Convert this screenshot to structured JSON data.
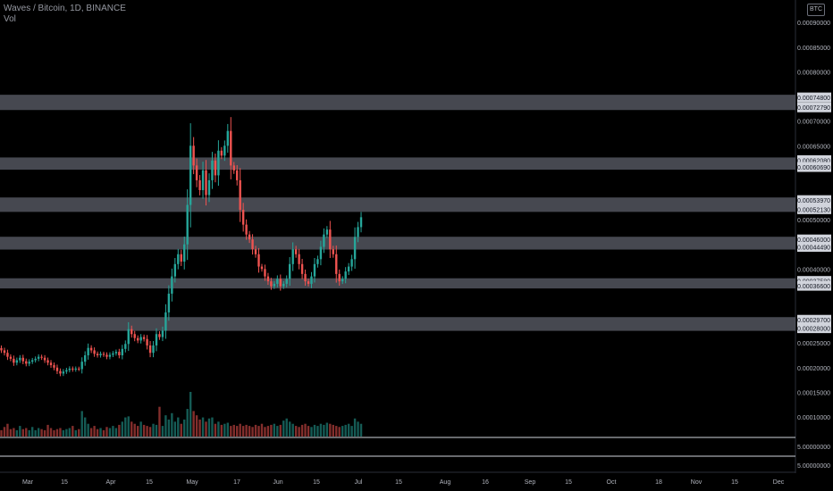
{
  "header": {
    "symbol_line": "Waves / Bitcoin, 1D, BINANCE",
    "volume_label": "Vol",
    "currency_badge": "BTC"
  },
  "colors": {
    "background": "#000000",
    "up": "#26a69a",
    "down": "#ef5350",
    "zone": "#5d606b",
    "axis_text": "#b2b5be",
    "label_box": "#d1d4dc"
  },
  "chart_data": {
    "type": "candlestick",
    "title": "Waves / Bitcoin, 1D, BINANCE",
    "y_axis_ticks": [
      "0.00090000",
      "0.00085000",
      "0.00080000",
      "0.00070000",
      "0.00065000",
      "0.00050000",
      "0.00040000",
      "0.00025000",
      "0.00020000",
      "0.00015000",
      "0.00010000"
    ],
    "y_range": [
      5e-05,
      0.00092
    ],
    "volume_ticks": [
      "5.00000000",
      "5.00000000"
    ],
    "x_axis_ticks": [
      "Mar",
      "15",
      "Apr",
      "15",
      "May",
      "17",
      "Jun",
      "15",
      "Jul",
      "15",
      "Aug",
      "16",
      "Sep",
      "15",
      "Oct",
      "18",
      "Nov",
      "15",
      "Dec"
    ],
    "zones": [
      {
        "top": "0.00074800",
        "bottom": "0.00072790"
      },
      {
        "top": "0.00062080",
        "bottom": "0.00060690"
      },
      {
        "top": "0.00053970",
        "bottom": "0.00052130"
      },
      {
        "top": "0.00046000",
        "bottom": "0.00044490"
      },
      {
        "top": "0.00037580",
        "bottom": "0.00036600"
      },
      {
        "top": "0.00029700",
        "bottom": "0.00028000"
      }
    ],
    "candles_close": [
      0.000235,
      0.00023,
      0.000222,
      0.000218,
      0.00021,
      0.000215,
      0.00022,
      0.000213,
      0.000208,
      0.000212,
      0.000215,
      0.000218,
      0.000222,
      0.00022,
      0.000215,
      0.00021,
      0.000205,
      0.0002,
      0.000193,
      0.000188,
      0.000192,
      0.000195,
      0.000198,
      0.000196,
      0.000198,
      0.000197,
      0.000212,
      0.000225,
      0.00024,
      0.000235,
      0.000228,
      0.000225,
      0.000228,
      0.000226,
      0.000222,
      0.000226,
      0.000229,
      0.000232,
      0.000225,
      0.000238,
      0.000248,
      0.000278,
      0.000268,
      0.00026,
      0.000255,
      0.000262,
      0.000258,
      0.000245,
      0.00023,
      0.000245,
      0.000268,
      0.000262,
      0.000275,
      0.000312,
      0.00035,
      0.000385,
      0.00041,
      0.00043,
      0.000415,
      0.00045,
      0.00053,
      0.00065,
      0.00061,
      0.00058,
      0.00056,
      0.0006,
      0.00055,
      0.00058,
      0.00062,
      0.00059,
      0.00064,
      0.00063,
      0.00065,
      0.00068,
      0.00061,
      0.0006,
      0.00058,
      0.00052,
      0.00049,
      0.00047,
      0.00046,
      0.00044,
      0.00043,
      0.000405,
      0.0004,
      0.000385,
      0.000375,
      0.000365,
      0.00037,
      0.00038,
      0.000365,
      0.00037,
      0.00038,
      0.00041,
      0.00044,
      0.00043,
      0.00041,
      0.00039,
      0.000375,
      0.00037,
      0.000385,
      0.00041,
      0.00042,
      0.000445,
      0.00047,
      0.00048,
      0.00044,
      0.00043,
      0.00039,
      0.000375,
      0.00038,
      0.000395,
      0.000405,
      0.00042,
      0.000465,
      0.000485,
      0.000505
    ],
    "volumes": [
      0.3,
      0.45,
      0.6,
      0.35,
      0.4,
      0.3,
      0.5,
      0.35,
      0.4,
      0.3,
      0.45,
      0.3,
      0.4,
      0.35,
      0.3,
      0.55,
      0.4,
      0.3,
      0.35,
      0.4,
      0.3,
      0.35,
      0.4,
      0.5,
      0.3,
      0.35,
      1.2,
      0.9,
      0.6,
      0.4,
      0.5,
      0.35,
      0.4,
      0.3,
      0.45,
      0.4,
      0.5,
      0.4,
      0.55,
      0.7,
      0.9,
      0.95,
      0.7,
      0.6,
      0.5,
      0.7,
      0.55,
      0.5,
      0.45,
      0.6,
      0.55,
      1.4,
      0.5,
      1.0,
      0.8,
      1.1,
      0.7,
      0.9,
      0.6,
      0.8,
      1.3,
      2.1,
      1.2,
      1.0,
      0.8,
      0.9,
      0.7,
      0.85,
      0.9,
      0.6,
      0.7,
      0.55,
      0.6,
      0.65,
      0.5,
      0.55,
      0.5,
      0.6,
      0.5,
      0.55,
      0.5,
      0.45,
      0.55,
      0.5,
      0.6,
      0.45,
      0.5,
      0.55,
      0.6,
      0.5,
      0.55,
      0.75,
      0.85,
      0.7,
      0.6,
      0.5,
      0.45,
      0.55,
      0.6,
      0.5,
      0.45,
      0.55,
      0.5,
      0.6,
      0.55,
      0.65,
      0.6,
      0.55,
      0.5,
      0.45,
      0.5,
      0.55,
      0.6,
      0.5,
      0.85,
      0.7,
      0.6
    ]
  }
}
